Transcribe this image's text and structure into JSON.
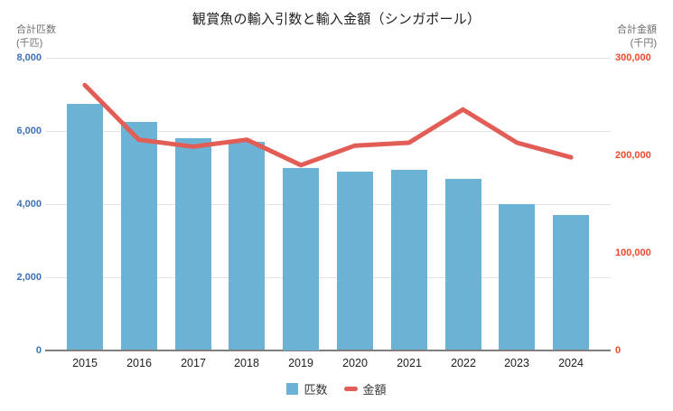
{
  "title": "観賞魚の輸入引数と輸入金額（シンガポール）",
  "left_axis": {
    "title_line1": "合計匹数",
    "title_line2": "(千匹)",
    "tick_values": [
      8000,
      6000,
      4000,
      2000,
      0
    ],
    "tick_labels": [
      "8,000",
      "6,000",
      "4,000",
      "2,000",
      "0"
    ],
    "color": "#3E70B7"
  },
  "right_axis": {
    "title_line1": "合計金額",
    "title_line2": "(千円)",
    "tick_values": [
      300000,
      200000,
      100000,
      0
    ],
    "tick_labels": [
      "300,000",
      "200,000",
      "100,000",
      "0"
    ],
    "color": "#F0492A"
  },
  "legend": {
    "items": [
      {
        "label": "匹数",
        "swatch": "square",
        "color": "#6CB2D5"
      },
      {
        "label": "金額",
        "swatch": "dash",
        "color": "#E15D55"
      }
    ]
  },
  "chart_data": {
    "type": "bar",
    "subtype": "combo-bar-line-dual-axis",
    "title": "観賞魚の輸入引数と輸入金額（シンガポール）",
    "categories": [
      "2015",
      "2016",
      "2017",
      "2018",
      "2019",
      "2020",
      "2021",
      "2022",
      "2023",
      "2024"
    ],
    "series": [
      {
        "name": "匹数",
        "type": "bar",
        "axis": "left",
        "color": "#6CB2D5",
        "values": [
          6750,
          6250,
          5800,
          5700,
          5000,
          4900,
          4950,
          4700,
          4000,
          3700
        ]
      },
      {
        "name": "金額",
        "type": "line",
        "axis": "right",
        "color": "#E15D55",
        "values": [
          272000,
          216000,
          209000,
          216000,
          190000,
          210000,
          213000,
          247000,
          213000,
          198000
        ]
      }
    ],
    "left_ylabel": "合計匹数(千匹)",
    "right_ylabel": "合計金額(千円)",
    "xlabel": "",
    "left_ylim": [
      0,
      8000
    ],
    "right_ylim": [
      0,
      300000
    ],
    "grid": true,
    "legend_position": "bottom"
  }
}
